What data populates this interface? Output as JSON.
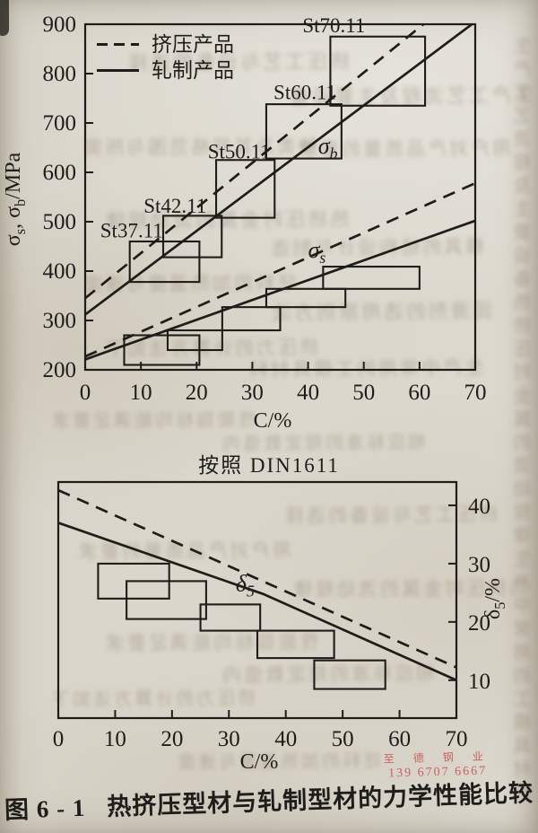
{
  "page": {
    "ink_color": "#1f1d1a",
    "paper_color": "#d9d5ca",
    "caption": {
      "figure": "图 6 - 1",
      "title": "热挤压型材与轧制型材的力学性能比较"
    },
    "watermark": {
      "line1": "至 德 钢 业",
      "line2": "139 6707 6667",
      "color": "#c8625e"
    }
  },
  "chart_data": [
    {
      "type": "line",
      "name": "strength-comparison",
      "xlabel": "C/%",
      "ylabel": "σ_s, σ_b/MPa",
      "xlim": [
        0,
        70
      ],
      "ylim": [
        200,
        900
      ],
      "xticks": [
        0,
        10,
        20,
        30,
        40,
        50,
        60,
        70
      ],
      "yticks": [
        200,
        300,
        400,
        500,
        600,
        700,
        800,
        900
      ],
      "grid": false,
      "legend_position": "top-left",
      "legend": [
        {
          "label": "挤压产品",
          "style": "dashed"
        },
        {
          "label": "轧制产品",
          "style": "solid"
        }
      ],
      "lines": [
        {
          "name": "sigma-b-extruded",
          "series": "挤压产品",
          "style": "dashed",
          "points": [
            [
              0,
              345
            ],
            [
              70,
              985
            ]
          ]
        },
        {
          "name": "sigma-b-rolled",
          "series": "轧制产品",
          "style": "solid",
          "points": [
            [
              0,
              312
            ],
            [
              70,
              905
            ]
          ]
        },
        {
          "name": "sigma-s-extruded",
          "series": "挤压产品",
          "style": "dashed",
          "points": [
            [
              0,
              227
            ],
            [
              70,
              578
            ]
          ]
        },
        {
          "name": "sigma-s-rolled",
          "series": "轧制产品",
          "style": "solid",
          "points": [
            [
              0,
              221
            ],
            [
              70,
              502
            ]
          ]
        }
      ],
      "box_groups": [
        {
          "name": "sigma-b",
          "boxes": [
            {
              "grade": "St37.11",
              "x": [
                8,
                20.5
              ],
              "y": [
                378,
                460
              ]
            },
            {
              "grade": "St42.11",
              "x": [
                14,
                24.5
              ],
              "y": [
                428,
                512
              ]
            },
            {
              "grade": "St50.11",
              "x": [
                23.5,
                34
              ],
              "y": [
                508,
                625
              ]
            },
            {
              "grade": "St60.11",
              "x": [
                32.5,
                46
              ],
              "y": [
                628,
                738
              ]
            },
            {
              "grade": "St70.11",
              "x": [
                44,
                61
              ],
              "y": [
                735,
                875
              ]
            }
          ]
        },
        {
          "name": "sigma-s",
          "boxes": [
            {
              "grade": "St37.11",
              "x": [
                7,
                20.5
              ],
              "y": [
                210,
                270
              ]
            },
            {
              "grade": "St42.11",
              "x": [
                14.8,
                24.6
              ],
              "y": [
                240,
                280
              ]
            },
            {
              "grade": "St50.11",
              "x": [
                24.6,
                35
              ],
              "y": [
                280,
                327
              ]
            },
            {
              "grade": "St60.11",
              "x": [
                32.5,
                46.7
              ],
              "y": [
                327,
                364
              ]
            },
            {
              "grade": "St70.11",
              "x": [
                42.7,
                60
              ],
              "y": [
                364,
                409
              ]
            }
          ]
        }
      ],
      "labels": [
        {
          "text": "St37.11",
          "x": 2.7,
          "y": 468,
          "cls": "grade",
          "nm": "grade-label-st37-11"
        },
        {
          "text": "St42.11",
          "x": 10.5,
          "y": 518,
          "cls": "grade",
          "nm": "grade-label-st42-11"
        },
        {
          "text": "St50.11",
          "x": 22,
          "y": 628,
          "cls": "grade",
          "nm": "grade-label-st50-11"
        },
        {
          "text": "St60.11",
          "x": 33.8,
          "y": 748,
          "cls": "grade",
          "nm": "grade-label-st60-11"
        },
        {
          "text": "St70.11",
          "x": 39,
          "y": 884,
          "cls": "grade",
          "nm": "grade-label-st70-11"
        },
        {
          "text": "σ_b",
          "x": 41.8,
          "y": 638,
          "cls": "sigma",
          "nm": "sigma-b-curve-label"
        },
        {
          "text": "σ_s",
          "x": 40,
          "y": 427,
          "cls": "sigma",
          "nm": "sigma-s-curve-label"
        }
      ]
    },
    {
      "type": "line",
      "name": "elongation-comparison",
      "subtitle": "按照 DIN1611",
      "xlabel": "C/%",
      "ylabel": "δ_5/%",
      "xlim": [
        0,
        70
      ],
      "ylim": [
        3.5,
        44
      ],
      "xticks": [
        0,
        10,
        20,
        30,
        40,
        50,
        60,
        70
      ],
      "yticks": [
        10,
        20,
        30,
        40
      ],
      "grid": false,
      "y_axis_side": "right",
      "lines": [
        {
          "name": "delta5-extruded",
          "series": "挤压产品",
          "style": "dashed",
          "points": [
            [
              0,
              42.6
            ],
            [
              70,
              12.2
            ]
          ]
        },
        {
          "name": "delta5-rolled",
          "series": "轧制产品",
          "style": "solid",
          "points": [
            [
              0,
              37
            ],
            [
              36,
              24.8
            ],
            [
              70,
              10
            ]
          ]
        }
      ],
      "box_groups": [
        {
          "name": "delta5",
          "boxes": [
            {
              "x": [
                7,
                19.5
              ],
              "y": [
                24,
                30
              ]
            },
            {
              "x": [
                12,
                26
              ],
              "y": [
                20.5,
                27
              ]
            },
            {
              "x": [
                25,
                35.5
              ],
              "y": [
                18.5,
                23
              ]
            },
            {
              "x": [
                35,
                48.5
              ],
              "y": [
                13.8,
                18.5
              ]
            },
            {
              "x": [
                45,
                57.5
              ],
              "y": [
                8.5,
                13.4
              ]
            }
          ]
        }
      ],
      "labels": [
        {
          "text": "δ_5",
          "x": 31.2,
          "y": 25.3,
          "cls": "sigma",
          "nm": "delta5-curve-label"
        }
      ]
    }
  ],
  "texture": {
    "ghost_lines": [
      "挤压工艺与设备的选择",
      "生产工艺流程及主要设备",
      "种类及其规格范围与所需",
      "用户对产品质量的要求",
      "热挤压时金属的流动规律",
      "模具的结构设计与制造",
      "坯料的加热温度与速度",
      "润滑剂的选用原则方法",
      "挤压力的计算方法如下",
      "生产中常用的工模具材料",
      "性能指标均能满足要求",
      "相应标准的规定数值内"
    ]
  }
}
